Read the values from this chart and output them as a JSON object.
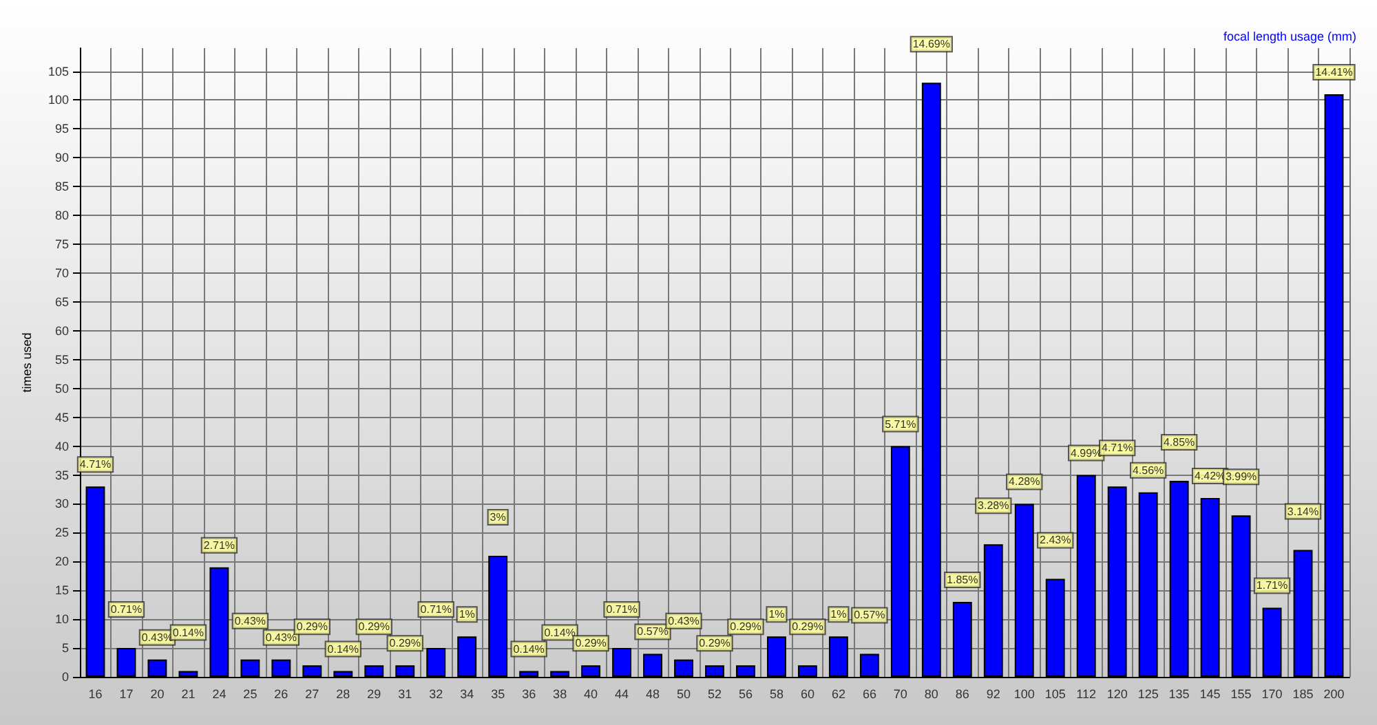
{
  "chart_data": {
    "type": "bar",
    "title": "focal length usage (mm)",
    "ylabel": "times used",
    "categories": [
      "16",
      "17",
      "20",
      "21",
      "24",
      "25",
      "26",
      "27",
      "28",
      "29",
      "31",
      "32",
      "34",
      "35",
      "36",
      "38",
      "40",
      "44",
      "48",
      "50",
      "52",
      "56",
      "58",
      "60",
      "62",
      "66",
      "70",
      "80",
      "86",
      "92",
      "100",
      "105",
      "112",
      "120",
      "125",
      "135",
      "145",
      "155",
      "170",
      "185",
      "200"
    ],
    "values": [
      33,
      5,
      3,
      1,
      19,
      3,
      3,
      2,
      1,
      2,
      2,
      5,
      7,
      21,
      1,
      1,
      2,
      5,
      4,
      3,
      2,
      2,
      7,
      2,
      7,
      4,
      40,
      103,
      13,
      23,
      30,
      17,
      35,
      33,
      32,
      34,
      31,
      28,
      12,
      22,
      101
    ],
    "annotations": [
      {
        "text": "4.71%",
        "x": "16",
        "y": 33
      },
      {
        "text": "0.71%",
        "x": "17",
        "y": 5
      },
      {
        "text": "0.43%",
        "x": "20",
        "y": 3
      },
      {
        "text": "0.14%",
        "x": "21",
        "y": 1
      },
      {
        "text": "2.71%",
        "x": "24",
        "y": 19
      },
      {
        "text": "0.43%",
        "x": "25",
        "y": 3
      },
      {
        "text": "0.43%",
        "x": "26",
        "y": 3
      },
      {
        "text": "0.29%",
        "x": "27",
        "y": 2
      },
      {
        "text": "0.14%",
        "x": "28",
        "y": 1
      },
      {
        "text": "0.29%",
        "x": "29",
        "y": 2
      },
      {
        "text": "0.29%",
        "x": "31",
        "y": 2
      },
      {
        "text": "0.71%",
        "x": "32",
        "y": 5
      },
      {
        "text": "1%",
        "x": "34",
        "y": 7
      },
      {
        "text": "3%",
        "x": "35",
        "y": 21
      },
      {
        "text": "0.14%",
        "x": "36",
        "y": 1
      },
      {
        "text": "0.14%",
        "x": "38",
        "y": 1
      },
      {
        "text": "0.29%",
        "x": "40",
        "y": 2
      },
      {
        "text": "0.71%",
        "x": "44",
        "y": 5
      },
      {
        "text": "0.57%",
        "x": "48",
        "y": 4
      },
      {
        "text": "0.43%",
        "x": "50",
        "y": 3
      },
      {
        "text": "0.29%",
        "x": "52",
        "y": 2
      },
      {
        "text": "0.29%",
        "x": "56",
        "y": 2
      },
      {
        "text": "1%",
        "x": "58",
        "y": 7
      },
      {
        "text": "0.29%",
        "x": "60",
        "y": 2
      },
      {
        "text": "1%",
        "x": "62",
        "y": 7
      },
      {
        "text": "0.57%",
        "x": "66",
        "y": 4
      },
      {
        "text": "5.71%",
        "x": "70",
        "y": 40
      },
      {
        "text": "14.69%",
        "x": "80",
        "y": 103
      },
      {
        "text": "1.85%",
        "x": "86",
        "y": 13
      },
      {
        "text": "3.28%",
        "x": "92",
        "y": 23
      },
      {
        "text": "4.28%",
        "x": "100",
        "y": 30
      },
      {
        "text": "2.43%",
        "x": "105",
        "y": 17
      },
      {
        "text": "4.99%",
        "x": "112",
        "y": 35
      },
      {
        "text": "4.71%",
        "x": "120",
        "y": 33
      },
      {
        "text": "4.56%",
        "x": "125",
        "y": 32
      },
      {
        "text": "4.85%",
        "x": "135",
        "y": 34
      },
      {
        "text": "4.42%",
        "x": "145",
        "y": 31
      },
      {
        "text": "3.99%",
        "x": "155",
        "y": 28
      },
      {
        "text": "1.71%",
        "x": "170",
        "y": 12
      },
      {
        "text": "3.14%",
        "x": "185",
        "y": 22
      },
      {
        "text": "14.41%",
        "x": "200",
        "y": 101
      }
    ],
    "color": "#0000ff",
    "ylim": [
      0,
      109
    ],
    "yticks": [
      0,
      5,
      10,
      15,
      20,
      25,
      30,
      35,
      40,
      45,
      50,
      55,
      60,
      65,
      70,
      75,
      80,
      85,
      90,
      95,
      100,
      105
    ],
    "grid": true
  }
}
